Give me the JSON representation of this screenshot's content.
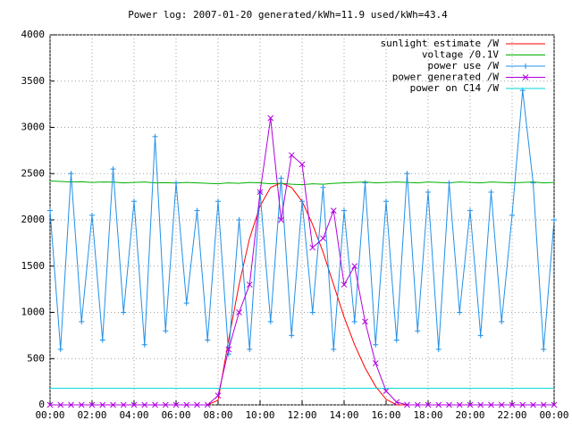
{
  "chart_data": {
    "type": "line",
    "title": "Power log: 2007-01-20 generated/kWh=11.9 used/kWh=43.4",
    "x": [
      0,
      0.5,
      1,
      1.5,
      2,
      2.5,
      3,
      3.5,
      4,
      4.5,
      5,
      5.5,
      6,
      6.5,
      7,
      7.5,
      8,
      8.5,
      9,
      9.5,
      10,
      10.5,
      11,
      11.5,
      12,
      12.5,
      13,
      13.5,
      14,
      14.5,
      15,
      15.5,
      16,
      16.5,
      17,
      17.5,
      18,
      18.5,
      19,
      19.5,
      20,
      20.5,
      21,
      21.5,
      22,
      22.5,
      23,
      23.5,
      24
    ],
    "series": [
      {
        "name": "sunlight estimate /W",
        "color": "#ff0000",
        "marker": "none",
        "values": [
          0,
          0,
          0,
          0,
          0,
          0,
          0,
          0,
          0,
          0,
          0,
          0,
          0,
          0,
          0,
          0,
          50,
          700,
          1300,
          1800,
          2150,
          2350,
          2400,
          2350,
          2200,
          1950,
          1650,
          1300,
          950,
          650,
          400,
          200,
          60,
          0,
          0,
          0,
          0,
          0,
          0,
          0,
          0,
          0,
          0,
          0,
          0,
          0,
          0,
          0,
          0
        ]
      },
      {
        "name": "voltage /0.1V",
        "color": "#00b000",
        "marker": "none",
        "values": [
          2420,
          2415,
          2410,
          2412,
          2405,
          2410,
          2408,
          2400,
          2405,
          2410,
          2400,
          2402,
          2398,
          2405,
          2400,
          2395,
          2390,
          2400,
          2395,
          2405,
          2400,
          2390,
          2395,
          2385,
          2380,
          2390,
          2385,
          2395,
          2400,
          2405,
          2410,
          2400,
          2405,
          2410,
          2405,
          2400,
          2410,
          2405,
          2400,
          2410,
          2405,
          2400,
          2410,
          2405,
          2400,
          2405,
          2410,
          2400,
          2405
        ]
      },
      {
        "name": "power use /W",
        "color": "#2090e8",
        "marker": "plus",
        "values": [
          2100,
          600,
          2500,
          900,
          2050,
          700,
          2550,
          1000,
          2200,
          650,
          2900,
          800,
          2400,
          1100,
          2100,
          700,
          2200,
          550,
          2000,
          600,
          2300,
          900,
          2450,
          750,
          2200,
          1000,
          2350,
          600,
          2100,
          900,
          2400,
          650,
          2200,
          700,
          2500,
          800,
          2300,
          600,
          2400,
          1000,
          2100,
          750,
          2300,
          900,
          2050,
          3400,
          2400,
          600,
          2000
        ]
      },
      {
        "name": "power generated /W",
        "color": "#b000e0",
        "marker": "cross",
        "values": [
          0,
          0,
          0,
          0,
          0,
          0,
          0,
          0,
          0,
          0,
          0,
          0,
          0,
          0,
          0,
          0,
          100,
          600,
          1000,
          1300,
          2300,
          3100,
          2000,
          2700,
          2600,
          1700,
          1800,
          2100,
          1300,
          1500,
          900,
          450,
          150,
          30,
          0,
          0,
          0,
          0,
          0,
          0,
          0,
          0,
          0,
          0,
          0,
          0,
          0,
          0,
          0
        ]
      },
      {
        "name": "power on C14 /W",
        "color": "#00d8d8",
        "marker": "none",
        "values": [
          180,
          180,
          180,
          180,
          180,
          180,
          180,
          180,
          180,
          180,
          180,
          180,
          180,
          180,
          180,
          180,
          180,
          180,
          180,
          180,
          180,
          180,
          180,
          180,
          180,
          180,
          180,
          180,
          180,
          180,
          180,
          180,
          180,
          180,
          180,
          180,
          180,
          180,
          180,
          180,
          180,
          180,
          180,
          180,
          180,
          180,
          180,
          180,
          180
        ]
      }
    ],
    "xlim": [
      0,
      24
    ],
    "xticks": [
      {
        "value": 0,
        "label": "00:00"
      },
      {
        "value": 2,
        "label": "02:00"
      },
      {
        "value": 4,
        "label": "04:00"
      },
      {
        "value": 6,
        "label": "06:00"
      },
      {
        "value": 8,
        "label": "08:00"
      },
      {
        "value": 10,
        "label": "10:00"
      },
      {
        "value": 12,
        "label": "12:00"
      },
      {
        "value": 14,
        "label": "14:00"
      },
      {
        "value": 16,
        "label": "16:00"
      },
      {
        "value": 18,
        "label": "18:00"
      },
      {
        "value": 20,
        "label": "20:00"
      },
      {
        "value": 22,
        "label": "22:00"
      },
      {
        "value": 24,
        "label": "00:00"
      }
    ],
    "ylim": [
      0,
      4000
    ],
    "yticks": [
      0,
      500,
      1000,
      1500,
      2000,
      2500,
      3000,
      3500,
      4000
    ],
    "grid": true,
    "legend": "top-right"
  }
}
